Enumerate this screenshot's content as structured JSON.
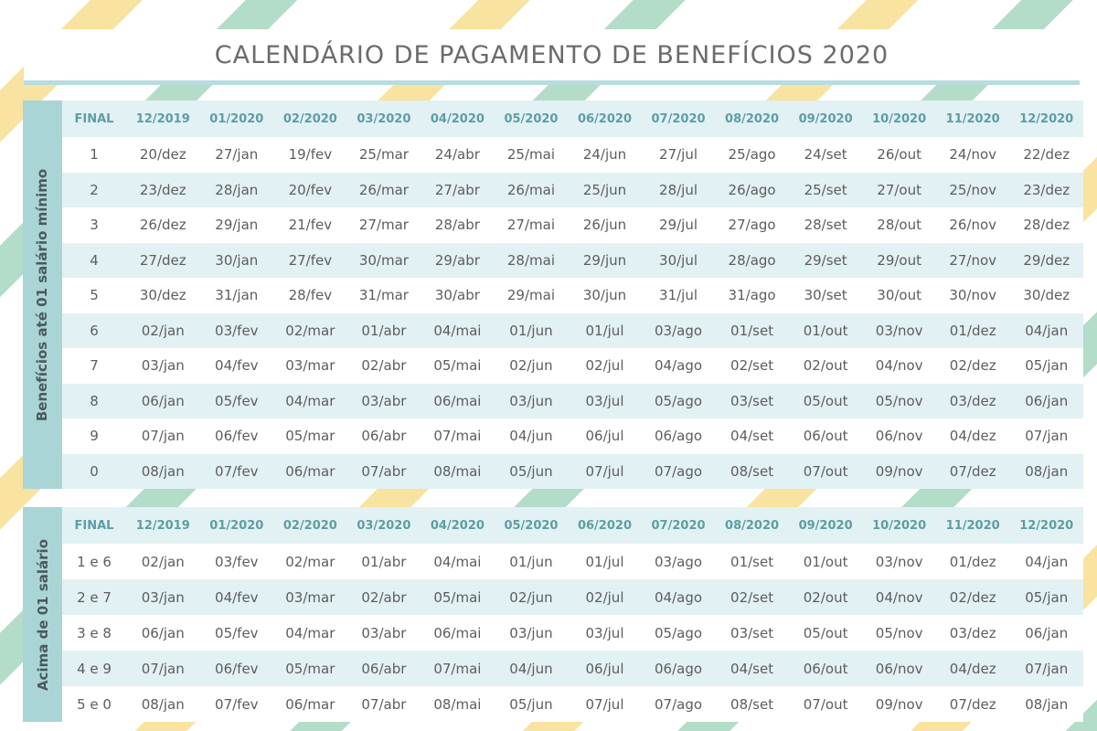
{
  "title": "CALENDÁRIO DE PAGAMENTO DE BENEFÍCIOS 2020",
  "colors": {
    "side": "#a9d5d6",
    "alt_row": "#e2f1f3",
    "header_text": "#5c9ea5",
    "stripe_yellow": "#f9e3a0",
    "stripe_green": "#b3dcc9"
  },
  "headers": [
    "FINAL",
    "12/2019",
    "01/2020",
    "02/2020",
    "03/2020",
    "04/2020",
    "05/2020",
    "06/2020",
    "07/2020",
    "08/2020",
    "09/2020",
    "10/2020",
    "11/2020",
    "12/2020"
  ],
  "table1": {
    "side_label": "Benefícios até 01 salário mínimo",
    "rows": [
      [
        "1",
        "20/dez",
        "27/jan",
        "19/fev",
        "25/mar",
        "24/abr",
        "25/mai",
        "24/jun",
        "27/jul",
        "25/ago",
        "24/set",
        "26/out",
        "24/nov",
        "22/dez"
      ],
      [
        "2",
        "23/dez",
        "28/jan",
        "20/fev",
        "26/mar",
        "27/abr",
        "26/mai",
        "25/jun",
        "28/jul",
        "26/ago",
        "25/set",
        "27/out",
        "25/nov",
        "23/dez"
      ],
      [
        "3",
        "26/dez",
        "29/jan",
        "21/fev",
        "27/mar",
        "28/abr",
        "27/mai",
        "26/jun",
        "29/jul",
        "27/ago",
        "28/set",
        "28/out",
        "26/nov",
        "28/dez"
      ],
      [
        "4",
        "27/dez",
        "30/jan",
        "27/fev",
        "30/mar",
        "29/abr",
        "28/mai",
        "29/jun",
        "30/jul",
        "28/ago",
        "29/set",
        "29/out",
        "27/nov",
        "29/dez"
      ],
      [
        "5",
        "30/dez",
        "31/jan",
        "28/fev",
        "31/mar",
        "30/abr",
        "29/mai",
        "30/jun",
        "31/jul",
        "31/ago",
        "30/set",
        "30/out",
        "30/nov",
        "30/dez"
      ],
      [
        "6",
        "02/jan",
        "03/fev",
        "02/mar",
        "01/abr",
        "04/mai",
        "01/jun",
        "01/jul",
        "03/ago",
        "01/set",
        "01/out",
        "03/nov",
        "01/dez",
        "04/jan"
      ],
      [
        "7",
        "03/jan",
        "04/fev",
        "03/mar",
        "02/abr",
        "05/mai",
        "02/jun",
        "02/jul",
        "04/ago",
        "02/set",
        "02/out",
        "04/nov",
        "02/dez",
        "05/jan"
      ],
      [
        "8",
        "06/jan",
        "05/fev",
        "04/mar",
        "03/abr",
        "06/mai",
        "03/jun",
        "03/jul",
        "05/ago",
        "03/set",
        "05/out",
        "05/nov",
        "03/dez",
        "06/jan"
      ],
      [
        "9",
        "07/jan",
        "06/fev",
        "05/mar",
        "06/abr",
        "07/mai",
        "04/jun",
        "06/jul",
        "06/ago",
        "04/set",
        "06/out",
        "06/nov",
        "04/dez",
        "07/jan"
      ],
      [
        "0",
        "08/jan",
        "07/fev",
        "06/mar",
        "07/abr",
        "08/mai",
        "05/jun",
        "07/jul",
        "07/ago",
        "08/set",
        "07/out",
        "09/nov",
        "07/dez",
        "08/jan"
      ]
    ]
  },
  "table2": {
    "side_label": "Acima de 01 salário",
    "rows": [
      [
        "1 e 6",
        "02/jan",
        "03/fev",
        "02/mar",
        "01/abr",
        "04/mai",
        "01/jun",
        "01/jul",
        "03/ago",
        "01/set",
        "01/out",
        "03/nov",
        "01/dez",
        "04/jan"
      ],
      [
        "2 e 7",
        "03/jan",
        "04/fev",
        "03/mar",
        "02/abr",
        "05/mai",
        "02/jun",
        "02/jul",
        "04/ago",
        "02/set",
        "02/out",
        "04/nov",
        "02/dez",
        "05/jan"
      ],
      [
        "3 e 8",
        "06/jan",
        "05/fev",
        "04/mar",
        "03/abr",
        "06/mai",
        "03/jun",
        "03/jul",
        "05/ago",
        "03/set",
        "05/out",
        "05/nov",
        "03/dez",
        "06/jan"
      ],
      [
        "4 e 9",
        "07/jan",
        "06/fev",
        "05/mar",
        "06/abr",
        "07/mai",
        "04/jun",
        "06/jul",
        "06/ago",
        "04/set",
        "06/out",
        "06/nov",
        "04/dez",
        "07/jan"
      ],
      [
        "5 e 0",
        "08/jan",
        "07/fev",
        "06/mar",
        "07/abr",
        "08/mai",
        "05/jun",
        "07/jul",
        "07/ago",
        "08/set",
        "07/out",
        "09/nov",
        "07/dez",
        "08/jan"
      ]
    ]
  }
}
